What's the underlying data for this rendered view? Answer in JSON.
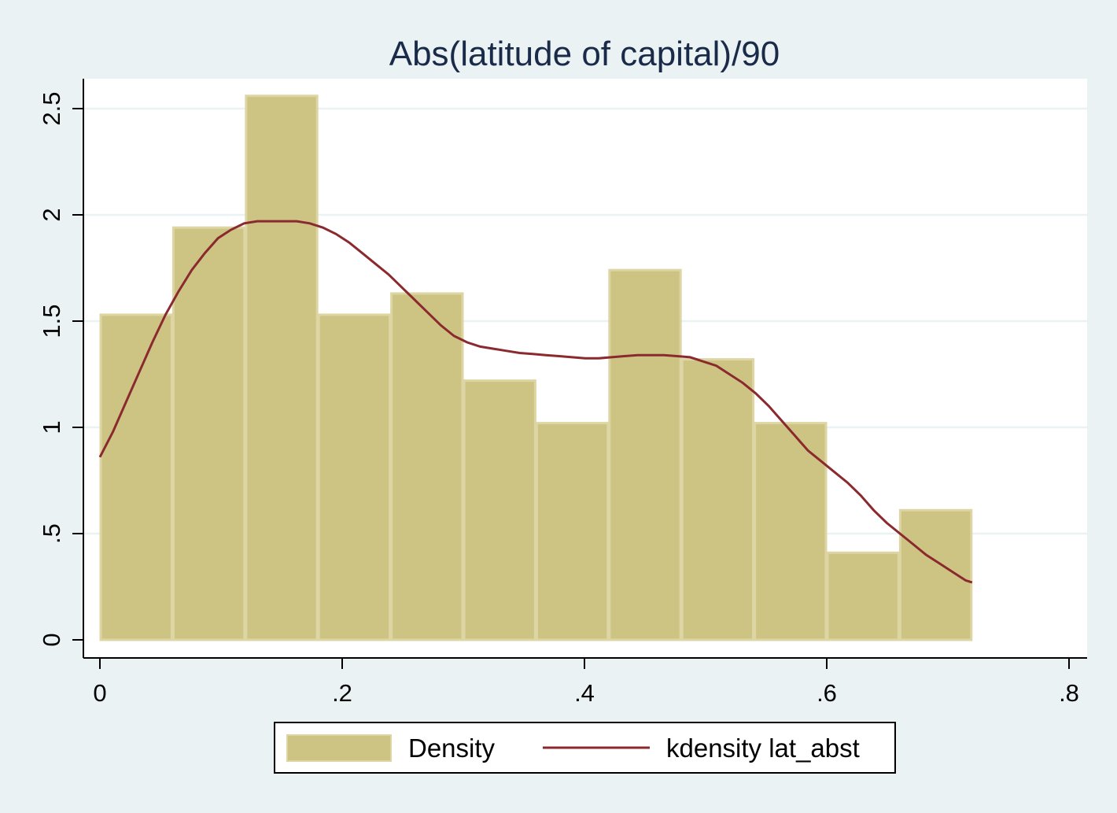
{
  "chart_data": {
    "type": "bar",
    "title": "Abs(latitude of capital)/90",
    "xlabel": "",
    "ylabel": "",
    "xlim": [
      0,
      0.8
    ],
    "ylim": [
      0,
      2.6
    ],
    "grid": true,
    "legend_placement": "bottom",
    "x_ticks": [
      {
        "value": 0,
        "label": "0"
      },
      {
        "value": 0.2,
        "label": ".2"
      },
      {
        "value": 0.4,
        "label": ".4"
      },
      {
        "value": 0.6,
        "label": ".6"
      },
      {
        "value": 0.8,
        "label": ".8"
      }
    ],
    "y_ticks": [
      {
        "value": 0,
        "label": "0"
      },
      {
        "value": 0.5,
        "label": ".5"
      },
      {
        "value": 1,
        "label": "1"
      },
      {
        "value": 1.5,
        "label": "1.5"
      },
      {
        "value": 2,
        "label": "2"
      },
      {
        "value": 2.5,
        "label": "2.5"
      }
    ],
    "series": [
      {
        "name": "Density",
        "kind": "histogram",
        "color": "#cdc484",
        "bins": [
          {
            "x0": 0.0,
            "x1": 0.06,
            "value": 1.53
          },
          {
            "x0": 0.06,
            "x1": 0.12,
            "value": 1.94
          },
          {
            "x0": 0.12,
            "x1": 0.18,
            "value": 2.56
          },
          {
            "x0": 0.18,
            "x1": 0.24,
            "value": 1.53
          },
          {
            "x0": 0.24,
            "x1": 0.3,
            "value": 1.63
          },
          {
            "x0": 0.3,
            "x1": 0.36,
            "value": 1.22
          },
          {
            "x0": 0.36,
            "x1": 0.42,
            "value": 1.02
          },
          {
            "x0": 0.42,
            "x1": 0.48,
            "value": 1.74
          },
          {
            "x0": 0.48,
            "x1": 0.54,
            "value": 1.32
          },
          {
            "x0": 0.54,
            "x1": 0.6,
            "value": 1.02
          },
          {
            "x0": 0.6,
            "x1": 0.66,
            "value": 0.41
          },
          {
            "x0": 0.66,
            "x1": 0.72,
            "value": 0.61
          }
        ]
      },
      {
        "name": "kdensity lat_abst",
        "kind": "line",
        "color": "#8b2a2e",
        "points": [
          [
            0.0,
            0.86
          ],
          [
            0.01,
            0.98
          ],
          [
            0.02,
            1.12
          ],
          [
            0.03,
            1.26
          ],
          [
            0.04,
            1.4
          ],
          [
            0.05,
            1.53
          ],
          [
            0.06,
            1.64
          ],
          [
            0.07,
            1.74
          ],
          [
            0.08,
            1.82
          ],
          [
            0.09,
            1.89
          ],
          [
            0.1,
            1.93
          ],
          [
            0.11,
            1.96
          ],
          [
            0.12,
            1.97
          ],
          [
            0.13,
            1.97
          ],
          [
            0.14,
            1.97
          ],
          [
            0.15,
            1.97
          ],
          [
            0.16,
            1.96
          ],
          [
            0.17,
            1.94
          ],
          [
            0.18,
            1.91
          ],
          [
            0.19,
            1.87
          ],
          [
            0.2,
            1.82
          ],
          [
            0.21,
            1.77
          ],
          [
            0.22,
            1.72
          ],
          [
            0.23,
            1.66
          ],
          [
            0.24,
            1.6
          ],
          [
            0.25,
            1.54
          ],
          [
            0.26,
            1.48
          ],
          [
            0.27,
            1.43
          ],
          [
            0.28,
            1.4
          ],
          [
            0.29,
            1.38
          ],
          [
            0.3,
            1.37
          ],
          [
            0.31,
            1.36
          ],
          [
            0.32,
            1.35
          ],
          [
            0.33,
            1.345
          ],
          [
            0.34,
            1.34
          ],
          [
            0.35,
            1.335
          ],
          [
            0.36,
            1.33
          ],
          [
            0.37,
            1.325
          ],
          [
            0.38,
            1.325
          ],
          [
            0.39,
            1.33
          ],
          [
            0.4,
            1.335
          ],
          [
            0.41,
            1.34
          ],
          [
            0.42,
            1.34
          ],
          [
            0.43,
            1.34
          ],
          [
            0.44,
            1.335
          ],
          [
            0.45,
            1.33
          ],
          [
            0.46,
            1.31
          ],
          [
            0.47,
            1.29
          ],
          [
            0.48,
            1.25
          ],
          [
            0.49,
            1.21
          ],
          [
            0.5,
            1.16
          ],
          [
            0.51,
            1.1
          ],
          [
            0.52,
            1.03
          ],
          [
            0.53,
            0.96
          ],
          [
            0.54,
            0.89
          ],
          [
            0.55,
            0.84
          ],
          [
            0.56,
            0.79
          ],
          [
            0.57,
            0.74
          ],
          [
            0.58,
            0.68
          ],
          [
            0.59,
            0.61
          ],
          [
            0.6,
            0.55
          ],
          [
            0.61,
            0.5
          ],
          [
            0.62,
            0.45
          ],
          [
            0.63,
            0.4
          ],
          [
            0.64,
            0.36
          ],
          [
            0.65,
            0.32
          ],
          [
            0.66,
            0.28
          ],
          [
            0.665,
            0.27
          ]
        ]
      }
    ]
  }
}
